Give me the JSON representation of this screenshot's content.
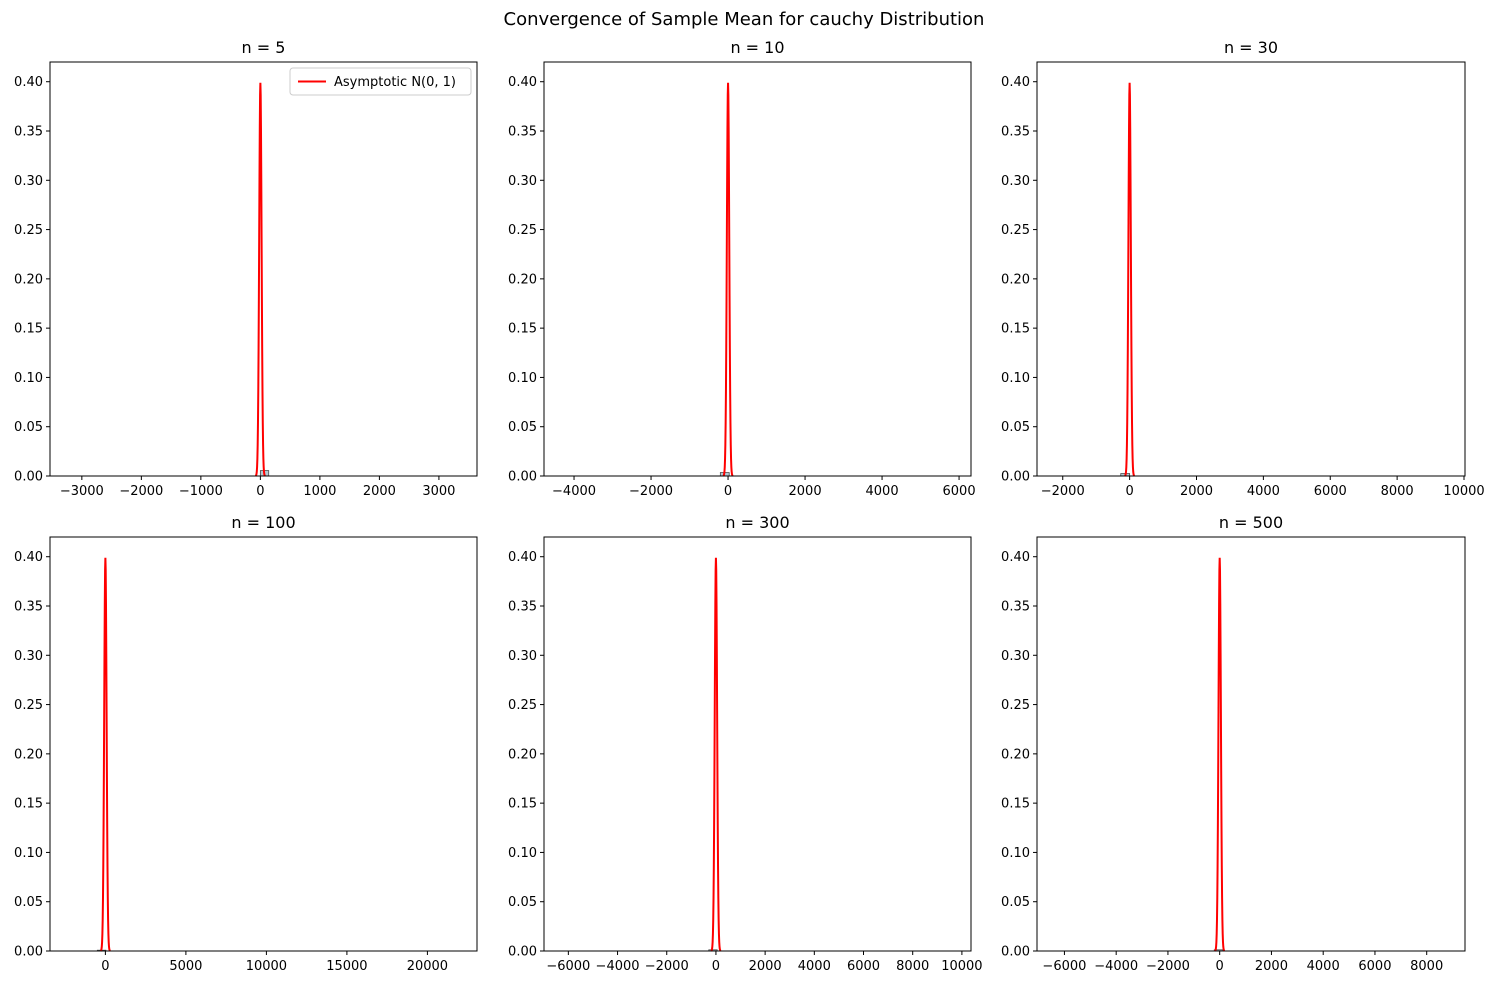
{
  "figure": {
    "title": "Convergence of Sample Mean for cauchy Distribution"
  },
  "colors": {
    "curve": "#ff0000",
    "hist_fill": "#9dbcc7",
    "hist_edge": "#4d4d4d",
    "axes": "#000000"
  },
  "legend": {
    "label": "Asymptotic N(0, 1)",
    "placement": "upper right of first panel"
  },
  "chart_data": [
    {
      "type": "bar",
      "title": "n = 5",
      "xlabel": "",
      "ylabel": "",
      "xlim": [
        -3535,
        3640
      ],
      "ylim": [
        0,
        0.42
      ],
      "xticks": [
        -3000,
        -2000,
        -1000,
        0,
        1000,
        2000,
        3000
      ],
      "yticks": [
        0,
        0.05,
        0.1,
        0.15,
        0.2,
        0.25,
        0.3,
        0.35,
        0.4
      ],
      "histogram": [
        {
          "x0": 0,
          "x1": 140,
          "density": 0.0055
        }
      ],
      "series": [
        {
          "name": "Asymptotic N(0, 1)",
          "type": "line",
          "peak_x": 0,
          "peak_y": 0.3989
        }
      ],
      "legend": true
    },
    {
      "type": "bar",
      "title": "n = 10",
      "xlabel": "",
      "ylabel": "",
      "xlim": [
        -4780,
        6310
      ],
      "ylim": [
        0,
        0.42
      ],
      "xticks": [
        -4000,
        -2000,
        0,
        2000,
        4000,
        6000
      ],
      "yticks": [
        0,
        0.05,
        0.1,
        0.15,
        0.2,
        0.25,
        0.3,
        0.35,
        0.4
      ],
      "histogram": [
        {
          "x0": -200,
          "x1": 30,
          "density": 0.0035
        }
      ],
      "series": [
        {
          "name": "Asymptotic N(0, 1)",
          "type": "line",
          "peak_x": 0,
          "peak_y": 0.3989
        }
      ],
      "legend": false
    },
    {
      "type": "bar",
      "title": "n = 30",
      "xlabel": "",
      "ylabel": "",
      "xlim": [
        -2770,
        10030
      ],
      "ylim": [
        0,
        0.42
      ],
      "xticks": [
        -2000,
        0,
        2000,
        4000,
        6000,
        8000,
        10000
      ],
      "yticks": [
        0,
        0.05,
        0.1,
        0.15,
        0.2,
        0.25,
        0.3,
        0.35,
        0.4
      ],
      "histogram": [
        {
          "x0": -265,
          "x1": 0,
          "density": 0.0025
        }
      ],
      "series": [
        {
          "name": "Asymptotic N(0, 1)",
          "type": "line",
          "peak_x": 0,
          "peak_y": 0.3989
        }
      ],
      "legend": false
    },
    {
      "type": "bar",
      "title": "n = 100",
      "xlabel": "",
      "ylabel": "",
      "xlim": [
        -3440,
        23080
      ],
      "ylim": [
        0,
        0.42
      ],
      "xticks": [
        0,
        5000,
        10000,
        15000,
        20000
      ],
      "yticks": [
        0,
        0.05,
        0.1,
        0.15,
        0.2,
        0.25,
        0.3,
        0.35,
        0.4
      ],
      "histogram": [
        {
          "x0": -500,
          "x1": 30,
          "density": 0.0008
        }
      ],
      "series": [
        {
          "name": "Asymptotic N(0, 1)",
          "type": "line",
          "peak_x": 0,
          "peak_y": 0.3989
        }
      ],
      "legend": false
    },
    {
      "type": "bar",
      "title": "n = 300",
      "xlabel": "",
      "ylabel": "",
      "xlim": [
        -6990,
        10370
      ],
      "ylim": [
        0,
        0.42
      ],
      "xticks": [
        -6000,
        -4000,
        -2000,
        0,
        2000,
        4000,
        6000,
        8000,
        10000
      ],
      "yticks": [
        0,
        0.05,
        0.1,
        0.15,
        0.2,
        0.25,
        0.3,
        0.35,
        0.4
      ],
      "histogram": [
        {
          "x0": -290,
          "x1": 50,
          "density": 0.0012
        }
      ],
      "series": [
        {
          "name": "Asymptotic N(0, 1)",
          "type": "line",
          "peak_x": 0,
          "peak_y": 0.3989
        }
      ],
      "legend": false
    },
    {
      "type": "bar",
      "title": "n = 500",
      "xlabel": "",
      "ylabel": "",
      "xlim": [
        -7060,
        9480
      ],
      "ylim": [
        0,
        0.42
      ],
      "xticks": [
        -6000,
        -4000,
        -2000,
        0,
        2000,
        4000,
        6000,
        8000
      ],
      "yticks": [
        0,
        0.05,
        0.1,
        0.15,
        0.2,
        0.25,
        0.3,
        0.35,
        0.4
      ],
      "histogram": [
        {
          "x0": -210,
          "x1": 120,
          "density": 0.0012
        }
      ],
      "series": [
        {
          "name": "Asymptotic N(0, 1)",
          "type": "line",
          "peak_x": 0,
          "peak_y": 0.3989
        }
      ],
      "legend": false
    }
  ]
}
